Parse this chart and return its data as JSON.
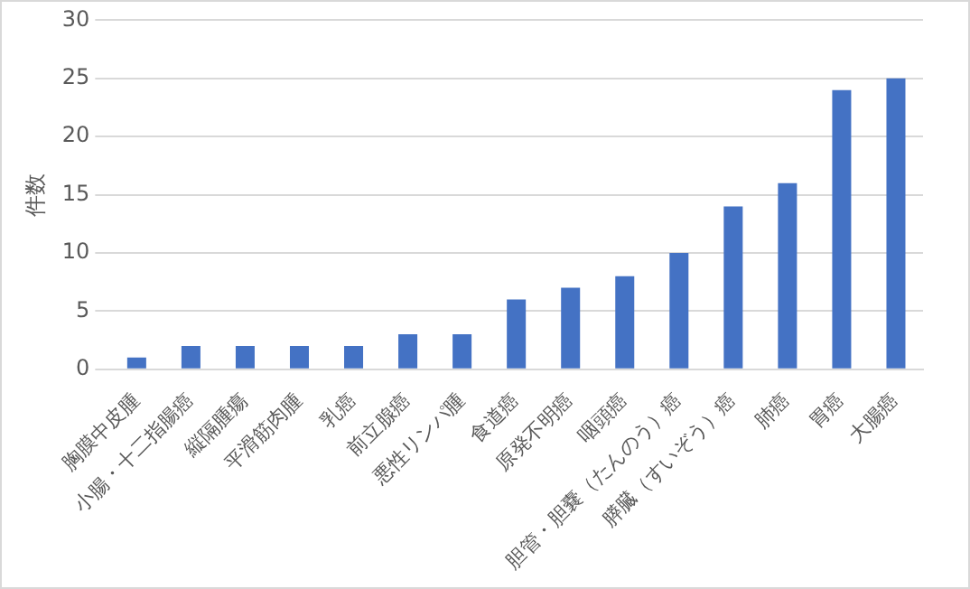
{
  "chart_data": {
    "type": "bar",
    "ylabel": "件数",
    "categories": [
      "胸膜中皮腫",
      "小腸・十二指腸癌",
      "縦隔腫瘍",
      "平滑筋肉腫",
      "乳癌",
      "前立腺癌",
      "悪性リンパ腫",
      "食道癌",
      "原発不明癌",
      "咽頭癌",
      "胆管・胆嚢（たんのう）癌",
      "膵臓（すいぞう）癌",
      "肺癌",
      "胃癌",
      "大腸癌"
    ],
    "values": [
      1,
      2,
      2,
      2,
      2,
      3,
      3,
      6,
      7,
      8,
      10,
      14,
      16,
      24,
      25
    ],
    "color": "#4472c4",
    "ylim": [
      0,
      30
    ],
    "yticks": [
      0,
      5,
      10,
      15,
      20,
      25,
      30
    ],
    "grid": "y"
  }
}
